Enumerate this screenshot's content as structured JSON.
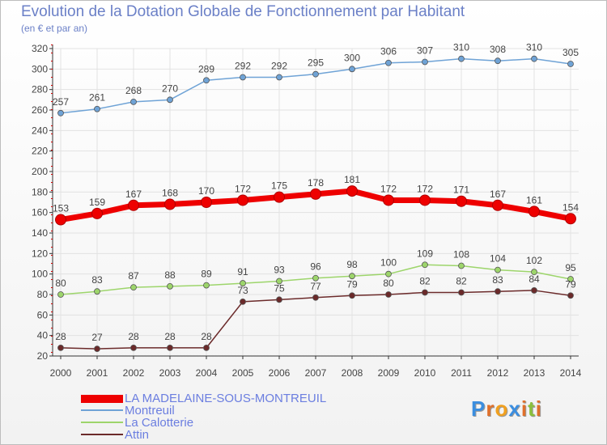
{
  "header": {
    "title": "Evolution de la Dotation Globale de Fonctionnement par Habitant",
    "subtitle": "(en € et par an)"
  },
  "logo": {
    "text": "Proxiti",
    "letters": [
      "P",
      "r",
      "o",
      "x",
      "i",
      "t",
      "i"
    ],
    "colors": [
      "#3b8ee0",
      "#e0702b",
      "#f0a020",
      "#3b8ee0",
      "#e0702b",
      "#8bbf3b",
      "#e0702b"
    ]
  },
  "colors": {
    "grid": "#e2e2e2",
    "axis": "#333333",
    "label": "#444444"
  },
  "chart_data": {
    "type": "line",
    "title": "Evolution de la Dotation Globale de Fonctionnement par Habitant",
    "subtitle": "(en € et par an)",
    "xlabel": "",
    "ylabel": "",
    "x": [
      "2000",
      "2001",
      "2002",
      "2003",
      "2004",
      "2005",
      "2006",
      "2007",
      "2008",
      "2009",
      "2010",
      "2011",
      "2012",
      "2013",
      "2014"
    ],
    "ylim": [
      20,
      320
    ],
    "yticks": [
      20,
      40,
      60,
      80,
      100,
      120,
      140,
      160,
      180,
      200,
      220,
      240,
      260,
      280,
      300,
      320
    ],
    "grid": true,
    "legend_position": "bottom-left",
    "series": [
      {
        "name": "LA MADELAINE-SOUS-MONTREUIL",
        "color": "#ee0000",
        "values": [
          153,
          159,
          167,
          168,
          170,
          172,
          175,
          178,
          181,
          172,
          172,
          171,
          167,
          161,
          154
        ]
      },
      {
        "name": "Montreuil",
        "color": "#6fa3d6",
        "values": [
          257,
          261,
          268,
          270,
          289,
          292,
          292,
          295,
          300,
          306,
          307,
          310,
          308,
          310,
          305
        ]
      },
      {
        "name": "La Calotterie",
        "color": "#9dd56b",
        "values": [
          80,
          83,
          87,
          88,
          89,
          91,
          93,
          96,
          98,
          100,
          109,
          108,
          104,
          102,
          95
        ]
      },
      {
        "name": "Attin",
        "color": "#6b2a2a",
        "values": [
          28,
          27,
          28,
          28,
          28,
          73,
          75,
          77,
          79,
          80,
          82,
          82,
          83,
          84,
          79
        ]
      }
    ]
  }
}
